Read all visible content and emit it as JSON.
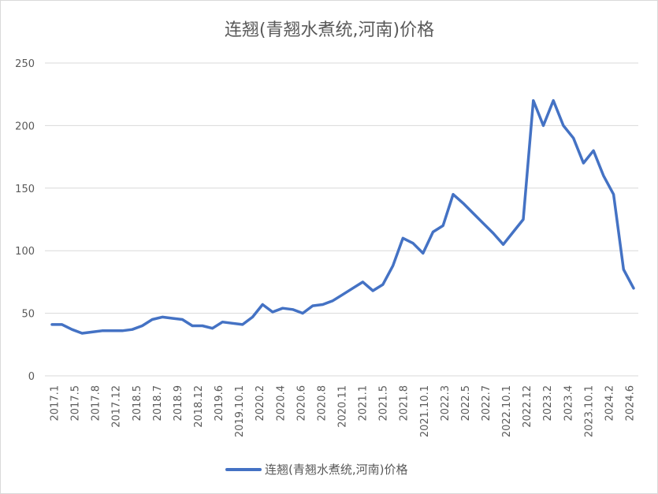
{
  "chart_data": {
    "type": "line",
    "title": "连翘(青翘水煮统,河南)价格",
    "xlabel": "",
    "ylabel": "",
    "ylim": [
      0,
      250
    ],
    "yticks": [
      0,
      50,
      100,
      150,
      200,
      250
    ],
    "grid": true,
    "legend_position": "bottom",
    "x_tick_labels": [
      "2017.1",
      "2017.5",
      "2017.8",
      "2017.12",
      "2018.5",
      "2018.7",
      "2018.9",
      "2018.12",
      "2019.6",
      "2019.10.1",
      "2020.2",
      "2020.4",
      "2020.6",
      "2020.8",
      "2020.11",
      "2021.1",
      "2021.5",
      "2021.8",
      "2021.10.1",
      "2022.3",
      "2022.5",
      "2022.7",
      "2022.10.1",
      "2022.12",
      "2023.2",
      "2023.4",
      "2023.10.1",
      "2024.2",
      "2024.6"
    ],
    "series": [
      {
        "name": "连翘(青翘水煮统,河南)价格",
        "color": "#4472C4",
        "values": [
          41,
          41,
          37,
          34,
          35,
          36,
          36,
          36,
          37,
          40,
          45,
          47,
          46,
          45,
          40,
          40,
          38,
          43,
          42,
          41,
          47,
          57,
          51,
          54,
          53,
          50,
          56,
          57,
          60,
          65,
          70,
          75,
          68,
          73,
          88,
          110,
          106,
          98,
          115,
          120,
          145,
          138,
          130,
          122,
          114,
          105,
          115,
          125,
          220,
          200,
          220,
          200,
          190,
          170,
          180,
          160,
          145,
          85,
          70
        ]
      }
    ]
  }
}
